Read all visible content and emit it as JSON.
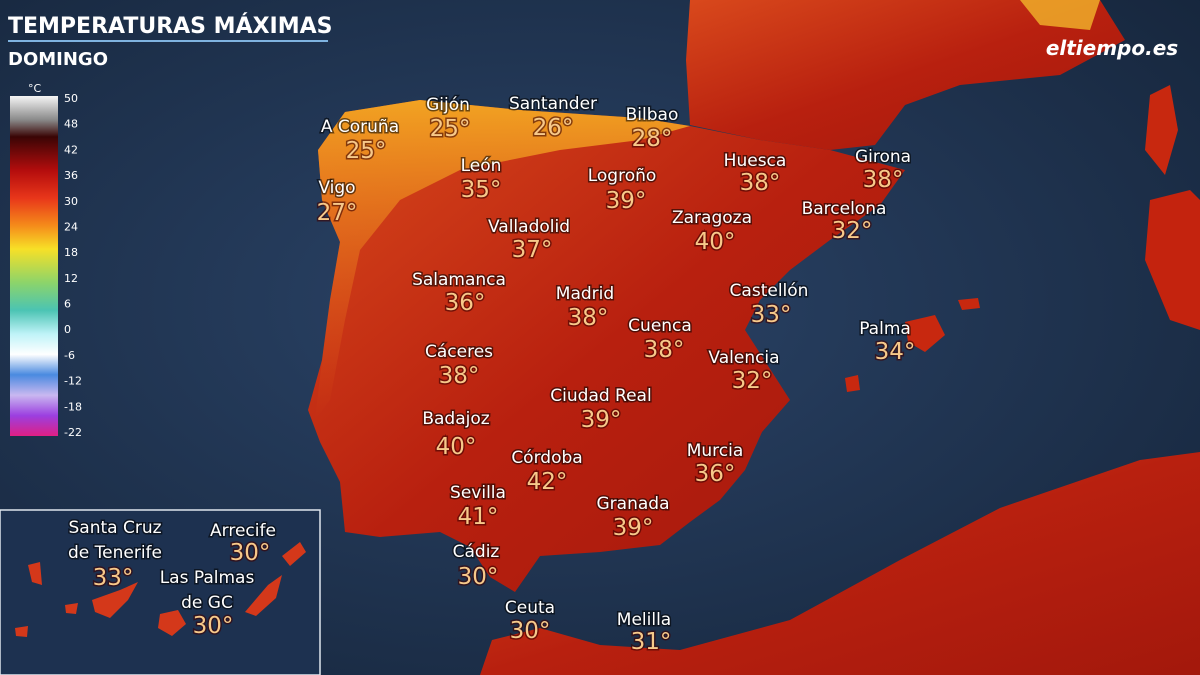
{
  "header": {
    "title": "TEMPERATURAS MÁXIMAS",
    "subtitle": "DOMINGO",
    "logo": "eltiempo.es"
  },
  "legend": {
    "unit": "°C",
    "labels": [
      "50",
      "48",
      "42",
      "36",
      "30",
      "24",
      "18",
      "12",
      "6",
      "0",
      "-6",
      "-12",
      "-18",
      "-22"
    ]
  },
  "cities": [
    {
      "name": [
        "A Coruña"
      ],
      "temp": "25°"
    },
    {
      "name": [
        "Gijón"
      ],
      "temp": "25°"
    },
    {
      "name": [
        "Santander"
      ],
      "temp": "26°"
    },
    {
      "name": [
        "Bilbao"
      ],
      "temp": "28°"
    },
    {
      "name": [
        "León"
      ],
      "temp": "35°"
    },
    {
      "name": [
        "Logroño"
      ],
      "temp": "39°"
    },
    {
      "name": [
        "Huesca"
      ],
      "temp": "38°"
    },
    {
      "name": [
        "Girona"
      ],
      "temp": "38°"
    },
    {
      "name": [
        "Vigo"
      ],
      "temp": "27°"
    },
    {
      "name": [
        "Valladolid"
      ],
      "temp": "37°"
    },
    {
      "name": [
        "Zaragoza"
      ],
      "temp": "40°"
    },
    {
      "name": [
        "Barcelona"
      ],
      "temp": "32°"
    },
    {
      "name": [
        "Salamanca"
      ],
      "temp": "36°"
    },
    {
      "name": [
        "Madrid"
      ],
      "temp": "38°"
    },
    {
      "name": [
        "Castellón"
      ],
      "temp": "33°"
    },
    {
      "name": [
        "Cuenca"
      ],
      "temp": "38°"
    },
    {
      "name": [
        "Palma"
      ],
      "temp": "34°"
    },
    {
      "name": [
        "Cáceres"
      ],
      "temp": "38°"
    },
    {
      "name": [
        "Valencia"
      ],
      "temp": "32°"
    },
    {
      "name": [
        "Ciudad Real"
      ],
      "temp": "39°"
    },
    {
      "name": [
        "Badajoz"
      ],
      "temp": "40°"
    },
    {
      "name": [
        "Córdoba"
      ],
      "temp": "42°"
    },
    {
      "name": [
        "Murcia"
      ],
      "temp": "36°"
    },
    {
      "name": [
        "Sevilla"
      ],
      "temp": "41°"
    },
    {
      "name": [
        "Granada"
      ],
      "temp": "39°"
    },
    {
      "name": [
        "Cádiz"
      ],
      "temp": "30°"
    },
    {
      "name": [
        "Ceuta"
      ],
      "temp": "30°"
    },
    {
      "name": [
        "Melilla"
      ],
      "temp": "31°"
    },
    {
      "name": [
        "Santa Cruz",
        "de Tenerife"
      ],
      "temp": "33°"
    },
    {
      "name": [
        "Arrecife"
      ],
      "temp": "30°"
    },
    {
      "name": [
        "Las Palmas",
        "de GC"
      ],
      "temp": "30°"
    }
  ]
}
